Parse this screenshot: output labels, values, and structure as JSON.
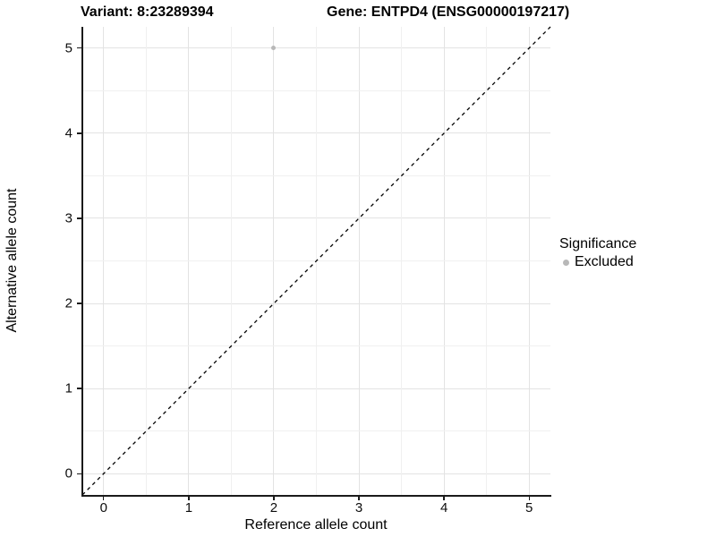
{
  "titles": {
    "variant": "Variant: 8:23289394",
    "gene": "Gene: ENTPD4 (ENSG00000197217)"
  },
  "chart_data": {
    "type": "scatter",
    "xlabel": "Reference allele count",
    "ylabel": "Alternative allele count",
    "xlim": [
      -0.25,
      5.25
    ],
    "ylim": [
      -0.25,
      5.25
    ],
    "x_ticks": [
      0,
      1,
      2,
      3,
      4,
      5
    ],
    "y_ticks": [
      0,
      1,
      2,
      3,
      4,
      5
    ],
    "minor_ticks": [
      0.5,
      1.5,
      2.5,
      3.5,
      4.5
    ],
    "grid": true,
    "series": [
      {
        "name": "Excluded",
        "color": "#b8b8b8",
        "points": [
          {
            "x": 2,
            "y": 5
          }
        ]
      }
    ],
    "reference_line": {
      "slope": 1,
      "intercept": 0,
      "style": "dashed",
      "color": "#000000"
    },
    "legend": {
      "title": "Significance",
      "position": "right",
      "entries": [
        {
          "label": "Excluded",
          "color": "#b8b8b8"
        }
      ]
    }
  },
  "colors": {
    "background": "#ffffff",
    "grid_major": "#e3e3e3",
    "grid_minor": "#f0f0f0",
    "axis": "#1a1a1a",
    "point_excluded": "#b8b8b8"
  }
}
